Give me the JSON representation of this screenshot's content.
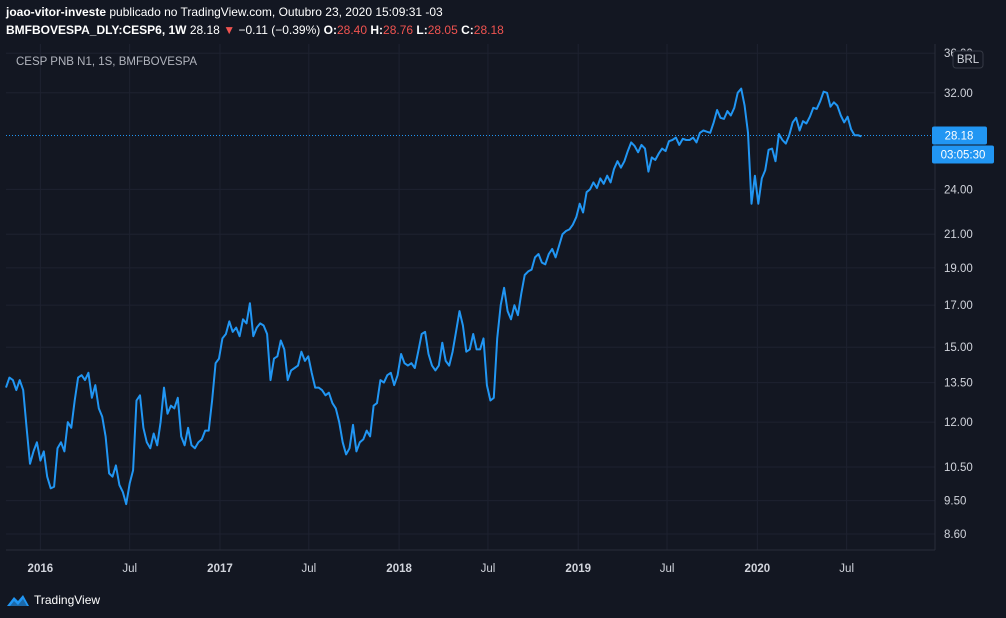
{
  "header": {
    "author": "joao-vitor-investe",
    "published_text": "publicado no TradingView.com, Outubro 23, 2020 15:09:31 -03",
    "symbol": "BMFBOVESPA_DLY:CESP6, 1W",
    "last": "28.18",
    "change_arrow": "▼",
    "change": "−0.11 (−0.39%)",
    "o_label": "O:",
    "o_value": "28.40",
    "h_label": "H:",
    "h_value": "28.76",
    "l_label": "L:",
    "l_value": "28.05",
    "c_label": "C:",
    "c_value": "28.18"
  },
  "footer": {
    "brand": "TradingView"
  },
  "colors": {
    "background": "#131722",
    "grid": "#1e2230",
    "line": "#2196f3",
    "red": "#ef5350",
    "text": "#d1d4dc"
  },
  "chart_data": {
    "type": "line",
    "legend": "CESP PNB N1, 1S, BMFBOVESPA",
    "currency_label": "BRL",
    "price_label": "28.18",
    "countdown_label": "03:05:30",
    "y_scale": "log",
    "y_ticks": [
      "8.60",
      "9.50",
      "10.50",
      "12.00",
      "13.50",
      "15.00",
      "17.00",
      "19.00",
      "21.00",
      "24.00",
      "32.00",
      "36.00"
    ],
    "y_tick_values": [
      8.6,
      9.5,
      10.5,
      12.0,
      13.5,
      15.0,
      17.0,
      19.0,
      21.0,
      24.0,
      32.0,
      36.0
    ],
    "ylim": [
      8.2,
      37.0
    ],
    "x_ticks": [
      "2016",
      "Jul",
      "2017",
      "Jul",
      "2018",
      "Jul",
      "2019",
      "Jul",
      "2020",
      "Jul"
    ],
    "x_tick_dates": [
      "2016-01-01",
      "2016-07-01",
      "2017-01-01",
      "2017-07-01",
      "2018-01-01",
      "2018-07-01",
      "2019-01-01",
      "2019-07-01",
      "2020-01-01",
      "2020-07-01"
    ],
    "x_tick_bold": [
      true,
      false,
      true,
      false,
      true,
      false,
      true,
      false,
      true,
      false
    ],
    "xlim": [
      "2015-10-23",
      "2020-12-28"
    ],
    "grid": true,
    "series": [
      {
        "points": [
          [
            "2015-10-23",
            13.3
          ],
          [
            "2015-10-30",
            13.7
          ],
          [
            "2015-11-06",
            13.6
          ],
          [
            "2015-11-13",
            13.2
          ],
          [
            "2015-11-20",
            13.6
          ],
          [
            "2015-11-27",
            13.2
          ],
          [
            "2015-12-04",
            11.8
          ],
          [
            "2015-12-11",
            10.6
          ],
          [
            "2015-12-18",
            11.0
          ],
          [
            "2015-12-25",
            11.3
          ],
          [
            "2016-01-01",
            10.7
          ],
          [
            "2016-01-08",
            11.0
          ],
          [
            "2016-01-15",
            10.2
          ],
          [
            "2016-01-22",
            9.85
          ],
          [
            "2016-01-29",
            9.9
          ],
          [
            "2016-02-05",
            11.1
          ],
          [
            "2016-02-12",
            11.3
          ],
          [
            "2016-02-19",
            11.0
          ],
          [
            "2016-02-26",
            12.0
          ],
          [
            "2016-03-04",
            11.8
          ],
          [
            "2016-03-11",
            12.8
          ],
          [
            "2016-03-18",
            13.7
          ],
          [
            "2016-03-25",
            13.8
          ],
          [
            "2016-04-01",
            13.6
          ],
          [
            "2016-04-08",
            13.9
          ],
          [
            "2016-04-15",
            12.9
          ],
          [
            "2016-04-22",
            13.4
          ],
          [
            "2016-04-29",
            12.5
          ],
          [
            "2016-05-06",
            12.2
          ],
          [
            "2016-05-13",
            11.5
          ],
          [
            "2016-05-20",
            10.3
          ],
          [
            "2016-05-27",
            10.2
          ],
          [
            "2016-06-03",
            10.55
          ],
          [
            "2016-06-10",
            9.95
          ],
          [
            "2016-06-17",
            9.75
          ],
          [
            "2016-06-24",
            9.4
          ],
          [
            "2016-07-01",
            10.0
          ],
          [
            "2016-07-08",
            10.4
          ],
          [
            "2016-07-15",
            12.8
          ],
          [
            "2016-07-22",
            13.0
          ],
          [
            "2016-07-29",
            11.8
          ],
          [
            "2016-08-05",
            11.3
          ],
          [
            "2016-08-12",
            11.1
          ],
          [
            "2016-08-19",
            11.6
          ],
          [
            "2016-08-26",
            11.2
          ],
          [
            "2016-09-02",
            12.0
          ],
          [
            "2016-09-09",
            13.3
          ],
          [
            "2016-09-16",
            12.3
          ],
          [
            "2016-09-23",
            12.6
          ],
          [
            "2016-09-30",
            12.5
          ],
          [
            "2016-10-07",
            12.9
          ],
          [
            "2016-10-14",
            11.5
          ],
          [
            "2016-10-21",
            11.2
          ],
          [
            "2016-10-28",
            11.8
          ],
          [
            "2016-11-04",
            11.2
          ],
          [
            "2016-11-11",
            11.1
          ],
          [
            "2016-11-18",
            11.3
          ],
          [
            "2016-11-25",
            11.4
          ],
          [
            "2016-12-02",
            11.7
          ],
          [
            "2016-12-09",
            11.7
          ],
          [
            "2016-12-16",
            12.8
          ],
          [
            "2016-12-23",
            14.3
          ],
          [
            "2016-12-30",
            14.5
          ],
          [
            "2017-01-06",
            15.4
          ],
          [
            "2017-01-13",
            15.6
          ],
          [
            "2017-01-20",
            16.2
          ],
          [
            "2017-01-27",
            15.7
          ],
          [
            "2017-02-03",
            15.9
          ],
          [
            "2017-02-10",
            15.5
          ],
          [
            "2017-02-17",
            16.3
          ],
          [
            "2017-02-24",
            16.1
          ],
          [
            "2017-03-03",
            17.1
          ],
          [
            "2017-03-10",
            15.5
          ],
          [
            "2017-03-17",
            15.9
          ],
          [
            "2017-03-24",
            16.1
          ],
          [
            "2017-03-31",
            16.0
          ],
          [
            "2017-04-07",
            15.6
          ],
          [
            "2017-04-14",
            13.6
          ],
          [
            "2017-04-21",
            14.5
          ],
          [
            "2017-04-28",
            14.6
          ],
          [
            "2017-05-05",
            15.3
          ],
          [
            "2017-05-12",
            14.9
          ],
          [
            "2017-05-19",
            13.6
          ],
          [
            "2017-05-26",
            14.0
          ],
          [
            "2017-06-02",
            14.1
          ],
          [
            "2017-06-09",
            14.2
          ],
          [
            "2017-06-16",
            14.8
          ],
          [
            "2017-06-23",
            14.4
          ],
          [
            "2017-06-30",
            14.6
          ],
          [
            "2017-07-07",
            13.9
          ],
          [
            "2017-07-14",
            13.3
          ],
          [
            "2017-07-21",
            13.3
          ],
          [
            "2017-07-28",
            13.2
          ],
          [
            "2017-08-04",
            13.0
          ],
          [
            "2017-08-11",
            13.1
          ],
          [
            "2017-08-18",
            12.7
          ],
          [
            "2017-08-25",
            12.5
          ],
          [
            "2017-09-01",
            12.0
          ],
          [
            "2017-09-08",
            11.3
          ],
          [
            "2017-09-15",
            10.9
          ],
          [
            "2017-09-22",
            11.1
          ],
          [
            "2017-09-29",
            11.9
          ],
          [
            "2017-10-06",
            11.0
          ],
          [
            "2017-10-13",
            11.3
          ],
          [
            "2017-10-20",
            11.4
          ],
          [
            "2017-10-27",
            11.7
          ],
          [
            "2017-11-03",
            11.5
          ],
          [
            "2017-11-10",
            12.6
          ],
          [
            "2017-11-17",
            12.7
          ],
          [
            "2017-11-24",
            13.6
          ],
          [
            "2017-12-01",
            13.5
          ],
          [
            "2017-12-08",
            13.8
          ],
          [
            "2017-12-15",
            13.9
          ],
          [
            "2017-12-22",
            13.4
          ],
          [
            "2017-12-29",
            13.8
          ],
          [
            "2018-01-05",
            14.7
          ],
          [
            "2018-01-12",
            14.3
          ],
          [
            "2018-01-19",
            14.2
          ],
          [
            "2018-01-26",
            14.3
          ],
          [
            "2018-02-02",
            14.1
          ],
          [
            "2018-02-09",
            14.8
          ],
          [
            "2018-02-16",
            15.6
          ],
          [
            "2018-02-23",
            15.7
          ],
          [
            "2018-03-02",
            14.7
          ],
          [
            "2018-03-09",
            14.2
          ],
          [
            "2018-03-16",
            14.0
          ],
          [
            "2018-03-23",
            14.2
          ],
          [
            "2018-03-30",
            15.2
          ],
          [
            "2018-04-06",
            14.4
          ],
          [
            "2018-04-13",
            14.2
          ],
          [
            "2018-04-20",
            14.8
          ],
          [
            "2018-04-27",
            15.7
          ],
          [
            "2018-05-04",
            16.7
          ],
          [
            "2018-05-11",
            16.0
          ],
          [
            "2018-05-18",
            14.8
          ],
          [
            "2018-05-25",
            14.9
          ],
          [
            "2018-06-01",
            15.6
          ],
          [
            "2018-06-08",
            14.9
          ],
          [
            "2018-06-15",
            14.9
          ],
          [
            "2018-06-22",
            15.4
          ],
          [
            "2018-06-29",
            13.4
          ],
          [
            "2018-07-06",
            12.8
          ],
          [
            "2018-07-13",
            12.9
          ],
          [
            "2018-07-20",
            15.4
          ],
          [
            "2018-07-27",
            17.0
          ],
          [
            "2018-08-03",
            17.9
          ],
          [
            "2018-08-10",
            16.7
          ],
          [
            "2018-08-17",
            16.3
          ],
          [
            "2018-08-24",
            17.0
          ],
          [
            "2018-08-31",
            16.5
          ],
          [
            "2018-09-07",
            17.6
          ],
          [
            "2018-09-14",
            18.6
          ],
          [
            "2018-09-21",
            18.8
          ],
          [
            "2018-09-28",
            18.9
          ],
          [
            "2018-10-05",
            19.6
          ],
          [
            "2018-10-12",
            19.8
          ],
          [
            "2018-10-19",
            19.3
          ],
          [
            "2018-10-26",
            19.2
          ],
          [
            "2018-11-02",
            19.8
          ],
          [
            "2018-11-09",
            20.1
          ],
          [
            "2018-11-16",
            19.6
          ],
          [
            "2018-11-23",
            20.3
          ],
          [
            "2018-11-30",
            21.0
          ],
          [
            "2018-12-07",
            21.2
          ],
          [
            "2018-12-14",
            21.3
          ],
          [
            "2018-12-21",
            21.6
          ],
          [
            "2018-12-28",
            22.1
          ],
          [
            "2019-01-04",
            23.0
          ],
          [
            "2019-01-11",
            22.4
          ],
          [
            "2019-01-18",
            23.8
          ],
          [
            "2019-01-25",
            24.0
          ],
          [
            "2019-02-01",
            24.5
          ],
          [
            "2019-02-08",
            24.1
          ],
          [
            "2019-02-15",
            24.8
          ],
          [
            "2019-02-22",
            24.4
          ],
          [
            "2019-03-01",
            25.0
          ],
          [
            "2019-03-08",
            24.5
          ],
          [
            "2019-03-15",
            25.5
          ],
          [
            "2019-03-22",
            26.1
          ],
          [
            "2019-03-29",
            25.6
          ],
          [
            "2019-04-05",
            26.1
          ],
          [
            "2019-04-12",
            26.9
          ],
          [
            "2019-04-19",
            27.6
          ],
          [
            "2019-04-26",
            27.3
          ],
          [
            "2019-05-03",
            26.8
          ],
          [
            "2019-05-10",
            27.4
          ],
          [
            "2019-05-17",
            27.1
          ],
          [
            "2019-05-24",
            25.3
          ],
          [
            "2019-05-31",
            26.4
          ],
          [
            "2019-06-07",
            26.2
          ],
          [
            "2019-06-14",
            26.7
          ],
          [
            "2019-06-21",
            27.1
          ],
          [
            "2019-06-28",
            26.9
          ],
          [
            "2019-07-05",
            27.7
          ],
          [
            "2019-07-12",
            27.8
          ],
          [
            "2019-07-19",
            28.0
          ],
          [
            "2019-07-26",
            27.4
          ],
          [
            "2019-08-02",
            27.9
          ],
          [
            "2019-08-09",
            27.8
          ],
          [
            "2019-08-16",
            27.8
          ],
          [
            "2019-08-23",
            28.0
          ],
          [
            "2019-08-30",
            27.6
          ],
          [
            "2019-09-06",
            28.4
          ],
          [
            "2019-09-13",
            28.6
          ],
          [
            "2019-09-20",
            28.5
          ],
          [
            "2019-09-27",
            28.4
          ],
          [
            "2019-10-04",
            29.3
          ],
          [
            "2019-10-11",
            30.4
          ],
          [
            "2019-10-18",
            29.7
          ],
          [
            "2019-10-25",
            29.6
          ],
          [
            "2019-11-01",
            30.3
          ],
          [
            "2019-11-08",
            29.9
          ],
          [
            "2019-11-15",
            30.6
          ],
          [
            "2019-11-22",
            32.0
          ],
          [
            "2019-11-29",
            32.4
          ],
          [
            "2019-12-06",
            30.8
          ],
          [
            "2019-12-13",
            28.4
          ],
          [
            "2019-12-20",
            23.0
          ],
          [
            "2019-12-27",
            25.0
          ],
          [
            "2020-01-03",
            23.0
          ],
          [
            "2020-01-10",
            24.8
          ],
          [
            "2020-01-17",
            25.4
          ],
          [
            "2020-01-24",
            27.0
          ],
          [
            "2020-01-31",
            27.1
          ],
          [
            "2020-02-07",
            26.1
          ],
          [
            "2020-02-14",
            28.3
          ],
          [
            "2020-02-21",
            27.8
          ],
          [
            "2020-02-28",
            27.5
          ],
          [
            "2020-03-06",
            28.2
          ],
          [
            "2020-03-13",
            29.3
          ],
          [
            "2020-03-20",
            29.7
          ],
          [
            "2020-03-27",
            28.6
          ],
          [
            "2020-04-03",
            29.4
          ],
          [
            "2020-04-10",
            29.2
          ],
          [
            "2020-04-17",
            29.8
          ],
          [
            "2020-04-24",
            30.6
          ],
          [
            "2020-05-01",
            30.5
          ],
          [
            "2020-05-08",
            31.2
          ],
          [
            "2020-05-15",
            32.1
          ],
          [
            "2020-05-22",
            32.0
          ],
          [
            "2020-05-29",
            30.7
          ],
          [
            "2020-06-05",
            31.1
          ],
          [
            "2020-06-12",
            30.8
          ],
          [
            "2020-06-19",
            29.9
          ],
          [
            "2020-06-26",
            29.3
          ],
          [
            "2020-07-03",
            29.8
          ],
          [
            "2020-07-10",
            28.7
          ],
          [
            "2020-07-17",
            28.2
          ],
          [
            "2020-07-24",
            28.2
          ],
          [
            "2020-07-31",
            28.1
          ]
        ]
      }
    ]
  }
}
